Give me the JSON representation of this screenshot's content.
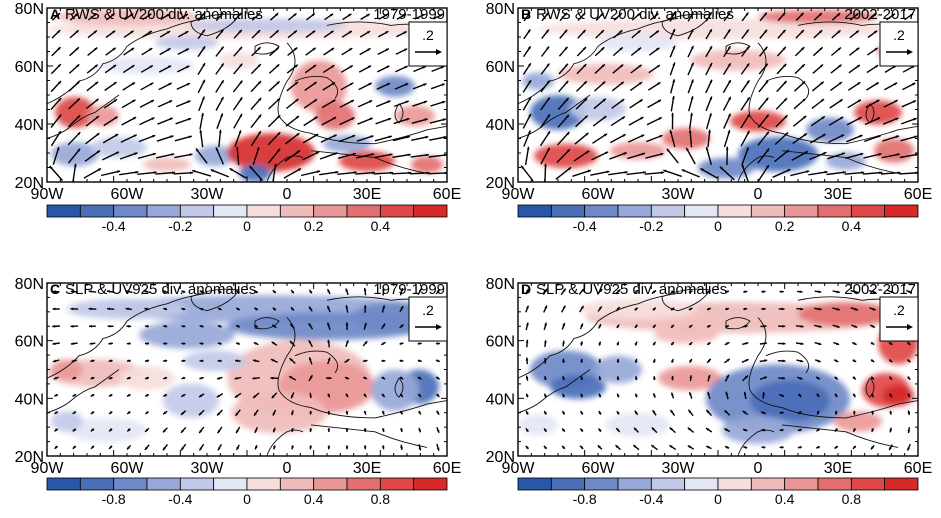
{
  "figure": {
    "panels": [
      {
        "letter": "A",
        "title": "RWS & UV200 div. anomalies",
        "period": "1979-1999",
        "vector_scale": ".2",
        "lat_labels": [
          "80N",
          "60N",
          "40N",
          "20N"
        ],
        "lon_labels": [
          "90W",
          "60W",
          "30W",
          "0",
          "30E",
          "60E"
        ],
        "colorbar_labels": [
          "-0.4",
          "-0.2",
          "0",
          "0.2",
          "0.4"
        ]
      },
      {
        "letter": "B",
        "title": "RWS & UV200 div. anomalies",
        "period": "2002-2017",
        "vector_scale": ".2",
        "lat_labels": [
          "80N",
          "60N",
          "40N",
          "20N"
        ],
        "lon_labels": [
          "90W",
          "60W",
          "30W",
          "0",
          "30E",
          "60E"
        ],
        "colorbar_labels": [
          "-0.4",
          "-0.2",
          "0",
          "0.2",
          "0.4"
        ]
      },
      {
        "letter": "C",
        "title": "SLP & UV925 div. anomalies",
        "period": "1979-1999",
        "vector_scale": ".2",
        "lat_labels": [
          "80N",
          "60N",
          "40N",
          "20N"
        ],
        "lon_labels": [
          "90W",
          "60W",
          "30W",
          "0",
          "30E",
          "60E"
        ],
        "colorbar_labels": [
          "-0.8",
          "-0.4",
          "0",
          "0.4",
          "0.8"
        ]
      },
      {
        "letter": "D",
        "title": "SLP & UV925 div. anomalies",
        "period": "2002-2017",
        "vector_scale": ".2",
        "lat_labels": [
          "80N",
          "60N",
          "40N",
          "20N"
        ],
        "lon_labels": [
          "90W",
          "60W",
          "30W",
          "0",
          "30E",
          "60E"
        ],
        "colorbar_labels": [
          "-0.8",
          "-0.4",
          "0",
          "0.4",
          "0.8"
        ]
      }
    ],
    "colors": {
      "bins": [
        "#2757a8",
        "#4a6fb8",
        "#6f89c8",
        "#97a8d8",
        "#c2c9e8",
        "#e3e6f4",
        "#f6dedd",
        "#f0bcbb",
        "#ea9897",
        "#e37070",
        "#df4848",
        "#d62a2a"
      ]
    }
  }
}
